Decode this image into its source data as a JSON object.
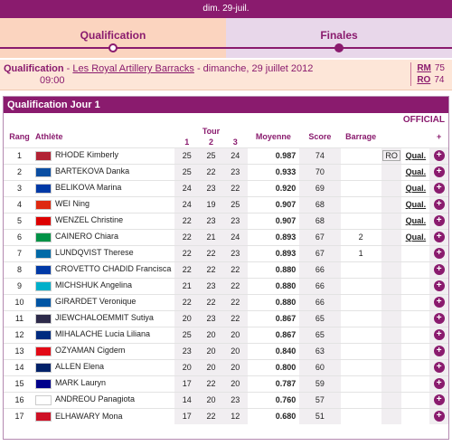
{
  "date": "dim. 29-juil.",
  "phases": [
    {
      "label": "Qualification",
      "active": true
    },
    {
      "label": "Finales",
      "active": false
    }
  ],
  "qual_info": {
    "prefix": "Qualification",
    "sep": " - ",
    "venue": "Les Royal Artillery Barracks",
    "rest": " - dimanche, 29 juillet 2012",
    "time": "09:00",
    "records": [
      {
        "code": "RM",
        "value": "75"
      },
      {
        "code": "RO",
        "value": "74"
      }
    ]
  },
  "panel": {
    "title": "Qualification Jour 1",
    "status": "OFFICIAL"
  },
  "headers": {
    "rank": "Rang",
    "athlete": "Athlète",
    "tour": "Tour",
    "t1": "1",
    "t2": "2",
    "t3": "3",
    "avg": "Moyenne",
    "score": "Score",
    "barrage": "Barrage",
    "plus": "+"
  },
  "rows": [
    {
      "rank": "1",
      "flag": "usa",
      "name": "RHODE Kimberly",
      "t1": "25",
      "t2": "25",
      "t3": "24",
      "avg": "0.987",
      "score": "74",
      "barrage": "",
      "rec": "RO",
      "qual": "Qual."
    },
    {
      "rank": "2",
      "flag": "svk",
      "name": "BARTEKOVA Danka",
      "t1": "25",
      "t2": "22",
      "t3": "23",
      "avg": "0.933",
      "score": "70",
      "barrage": "",
      "rec": "",
      "qual": "Qual."
    },
    {
      "rank": "3",
      "flag": "rus",
      "name": "BELIKOVA Marina",
      "t1": "24",
      "t2": "23",
      "t3": "22",
      "avg": "0.920",
      "score": "69",
      "barrage": "",
      "rec": "",
      "qual": "Qual."
    },
    {
      "rank": "4",
      "flag": "chn",
      "name": "WEI Ning",
      "t1": "24",
      "t2": "19",
      "t3": "25",
      "avg": "0.907",
      "score": "68",
      "barrage": "",
      "rec": "",
      "qual": "Qual."
    },
    {
      "rank": "5",
      "flag": "ger",
      "name": "WENZEL Christine",
      "t1": "22",
      "t2": "23",
      "t3": "23",
      "avg": "0.907",
      "score": "68",
      "barrage": "",
      "rec": "",
      "qual": "Qual."
    },
    {
      "rank": "6",
      "flag": "ita",
      "name": "CAINERO Chiara",
      "t1": "22",
      "t2": "21",
      "t3": "24",
      "avg": "0.893",
      "score": "67",
      "barrage": "2",
      "rec": "",
      "qual": "Qual."
    },
    {
      "rank": "7",
      "flag": "swe",
      "name": "LUNDQVIST Therese",
      "t1": "22",
      "t2": "22",
      "t3": "23",
      "avg": "0.893",
      "score": "67",
      "barrage": "1",
      "rec": "",
      "qual": ""
    },
    {
      "rank": "8",
      "flag": "chi",
      "name": "CROVETTO CHADID Francisca",
      "t1": "22",
      "t2": "22",
      "t3": "22",
      "avg": "0.880",
      "score": "66",
      "barrage": "",
      "rec": "",
      "qual": ""
    },
    {
      "rank": "9",
      "flag": "kaz",
      "name": "MICHSHUK Angelina",
      "t1": "21",
      "t2": "23",
      "t3": "22",
      "avg": "0.880",
      "score": "66",
      "barrage": "",
      "rec": "",
      "qual": ""
    },
    {
      "rank": "10",
      "flag": "fra",
      "name": "GIRARDET Veronique",
      "t1": "22",
      "t2": "22",
      "t3": "22",
      "avg": "0.880",
      "score": "66",
      "barrage": "",
      "rec": "",
      "qual": ""
    },
    {
      "rank": "11",
      "flag": "tha",
      "name": "JIEWCHALOEMMIT Sutiya",
      "t1": "20",
      "t2": "23",
      "t3": "22",
      "avg": "0.867",
      "score": "65",
      "barrage": "",
      "rec": "",
      "qual": ""
    },
    {
      "rank": "12",
      "flag": "rou",
      "name": "MIHALACHE Lucia Liliana",
      "t1": "25",
      "t2": "20",
      "t3": "20",
      "avg": "0.867",
      "score": "65",
      "barrage": "",
      "rec": "",
      "qual": ""
    },
    {
      "rank": "13",
      "flag": "tur",
      "name": "OZYAMAN Cigdem",
      "t1": "23",
      "t2": "20",
      "t3": "20",
      "avg": "0.840",
      "score": "63",
      "barrage": "",
      "rec": "",
      "qual": ""
    },
    {
      "rank": "14",
      "flag": "gbr",
      "name": "ALLEN Elena",
      "t1": "20",
      "t2": "20",
      "t3": "20",
      "avg": "0.800",
      "score": "60",
      "barrage": "",
      "rec": "",
      "qual": ""
    },
    {
      "rank": "15",
      "flag": "aus",
      "name": "MARK Lauryn",
      "t1": "17",
      "t2": "22",
      "t3": "20",
      "avg": "0.787",
      "score": "59",
      "barrage": "",
      "rec": "",
      "qual": ""
    },
    {
      "rank": "16",
      "flag": "cyp",
      "name": "ANDREOU Panagiota",
      "t1": "14",
      "t2": "20",
      "t3": "23",
      "avg": "0.760",
      "score": "57",
      "barrage": "",
      "rec": "",
      "qual": ""
    },
    {
      "rank": "17",
      "flag": "egy",
      "name": "ELHAWARY Mona",
      "t1": "17",
      "t2": "22",
      "t3": "12",
      "avg": "0.680",
      "score": "51",
      "barrage": "",
      "rec": "",
      "qual": ""
    }
  ],
  "flag_colors": {
    "usa": "#b22234",
    "svk": "#0b4ea2",
    "rus": "#0039a6",
    "chn": "#de2910",
    "ger": "#dd0000",
    "ita": "#009246",
    "swe": "#006aa7",
    "chi": "#0039a6",
    "kaz": "#00afca",
    "fra": "#0055a4",
    "tha": "#2d2a4a",
    "rou": "#002b7f",
    "tur": "#e30a17",
    "gbr": "#012169",
    "aus": "#00008b",
    "cyp": "#ffffff",
    "egy": "#ce1126"
  }
}
